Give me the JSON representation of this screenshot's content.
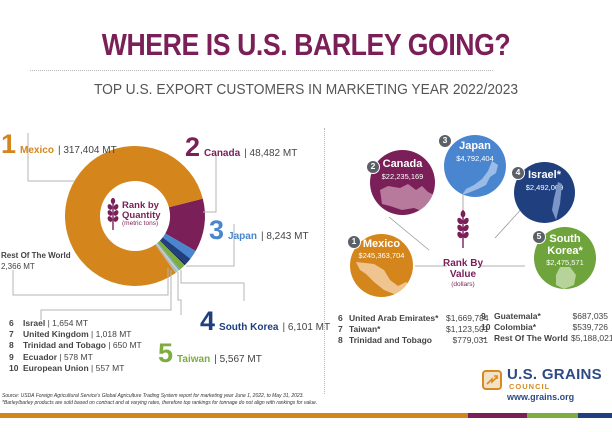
{
  "header": {
    "title": "WHERE IS U.S. BARLEY GOING?",
    "subtitle": "TOP U.S. EXPORT CUSTOMERS IN MARKETING YEAR 2022/2023"
  },
  "quantity_panel": {
    "center_title_line1": "Rank by",
    "center_title_line2": "Quantity",
    "center_subtitle": "(metric tons)",
    "top5": [
      {
        "rank": "1",
        "name": "Mexico",
        "value": "| 317,404 MT",
        "color": "#d4861c"
      },
      {
        "rank": "2",
        "name": "Canada",
        "value": "| 48,482 MT",
        "color": "#7a1f57"
      },
      {
        "rank": "3",
        "name": "Japan",
        "value": "| 8,243 MT",
        "color": "#4a86cf"
      },
      {
        "rank": "4",
        "name": "South Korea",
        "value": "| 6,101 MT",
        "color": "#1f3f7e"
      },
      {
        "rank": "5",
        "name": "Taiwan",
        "value": "| 5,567 MT",
        "color": "#7cad3e"
      }
    ],
    "rest_of_world": {
      "label": "Rest Of The World",
      "value": "2,366 MT"
    },
    "others": [
      {
        "rank": "6",
        "name": "Israel",
        "value": "| 1,654 MT"
      },
      {
        "rank": "7",
        "name": "United Kingdom",
        "value": "| 1,018 MT"
      },
      {
        "rank": "8",
        "name": "Trinidad and Tobago",
        "value": "| 650 MT"
      },
      {
        "rank": "9",
        "name": "Ecuador",
        "value": "| 578 MT"
      },
      {
        "rank": "10",
        "name": "European Union",
        "value": "| 557 MT"
      }
    ]
  },
  "value_panel": {
    "center_title_line1": "Rank By",
    "center_title_line2": "Value",
    "center_subtitle": "(dollars)",
    "top5": [
      {
        "rank": "1",
        "name": "Mexico",
        "value": "$245,363,704",
        "color": "#d4861c"
      },
      {
        "rank": "2",
        "name": "Canada",
        "value": "$22,235,169",
        "color": "#7a1f57"
      },
      {
        "rank": "3",
        "name": "Japan",
        "value": "$4,792,404",
        "color": "#4a86cf"
      },
      {
        "rank": "4",
        "name": "Israel*",
        "value": "$2,492,069",
        "color": "#1f3f7e"
      },
      {
        "rank": "5",
        "name_line1": "South",
        "name_line2": "Korea*",
        "value": "$2,475,571",
        "color": "#6fa33b"
      }
    ],
    "others_left": [
      {
        "rank": "6",
        "name": "United Arab Emirates*",
        "value": "$1,669,784"
      },
      {
        "rank": "7",
        "name": "Taiwan*",
        "value": "$1,123,501"
      },
      {
        "rank": "8",
        "name": "Trinidad and Tobago",
        "value": "$779,031"
      }
    ],
    "others_right": [
      {
        "rank": "9",
        "name": "Guatemala*",
        "value": "$687,035"
      },
      {
        "rank": "10",
        "name": "Colombia*",
        "value": "$539,726"
      },
      {
        "rank": "–",
        "name": "Rest Of The World",
        "value": "$5,188,021"
      }
    ]
  },
  "footnote": {
    "line1": "Source: USDA Foreign Agricultural Service's Global Agriculture Trading System report for marketing year June 1, 2022, to May 31, 2023.",
    "line2": "*Barley/barley products are sold based on contract and at varying rates, therefore top rankings for tonnage do not align with rankings for value."
  },
  "logo": {
    "title": "U.S. GRAINS",
    "subtitle": "COUNCIL",
    "url": "www.grains.org"
  },
  "colors": {
    "brand_purple": "#7a1f57",
    "orange": "#d4861c",
    "light_blue": "#4a86cf",
    "navy": "#1f3f7e",
    "green": "#7cad3e"
  },
  "chart_data": [
    {
      "type": "pie",
      "title": "Rank by Quantity (metric tons)",
      "categories": [
        "Mexico",
        "Canada",
        "Japan",
        "South Korea",
        "Taiwan",
        "Israel",
        "United Kingdom",
        "Trinidad and Tobago",
        "Ecuador",
        "European Union",
        "Rest Of The World"
      ],
      "values": [
        317404,
        48482,
        8243,
        6101,
        5567,
        1654,
        1018,
        650,
        578,
        557,
        2366
      ],
      "unit": "MT",
      "style": "donut"
    },
    {
      "type": "table",
      "title": "Rank By Value (dollars)",
      "categories": [
        "Mexico",
        "Canada",
        "Japan",
        "Israel*",
        "South Korea*",
        "United Arab Emirates*",
        "Taiwan*",
        "Trinidad and Tobago",
        "Guatemala*",
        "Colombia*",
        "Rest Of The World"
      ],
      "values": [
        245363704,
        22235169,
        4792404,
        2492069,
        2475571,
        1669784,
        1123501,
        779031,
        687035,
        539726,
        5188021
      ],
      "unit": "USD"
    }
  ]
}
